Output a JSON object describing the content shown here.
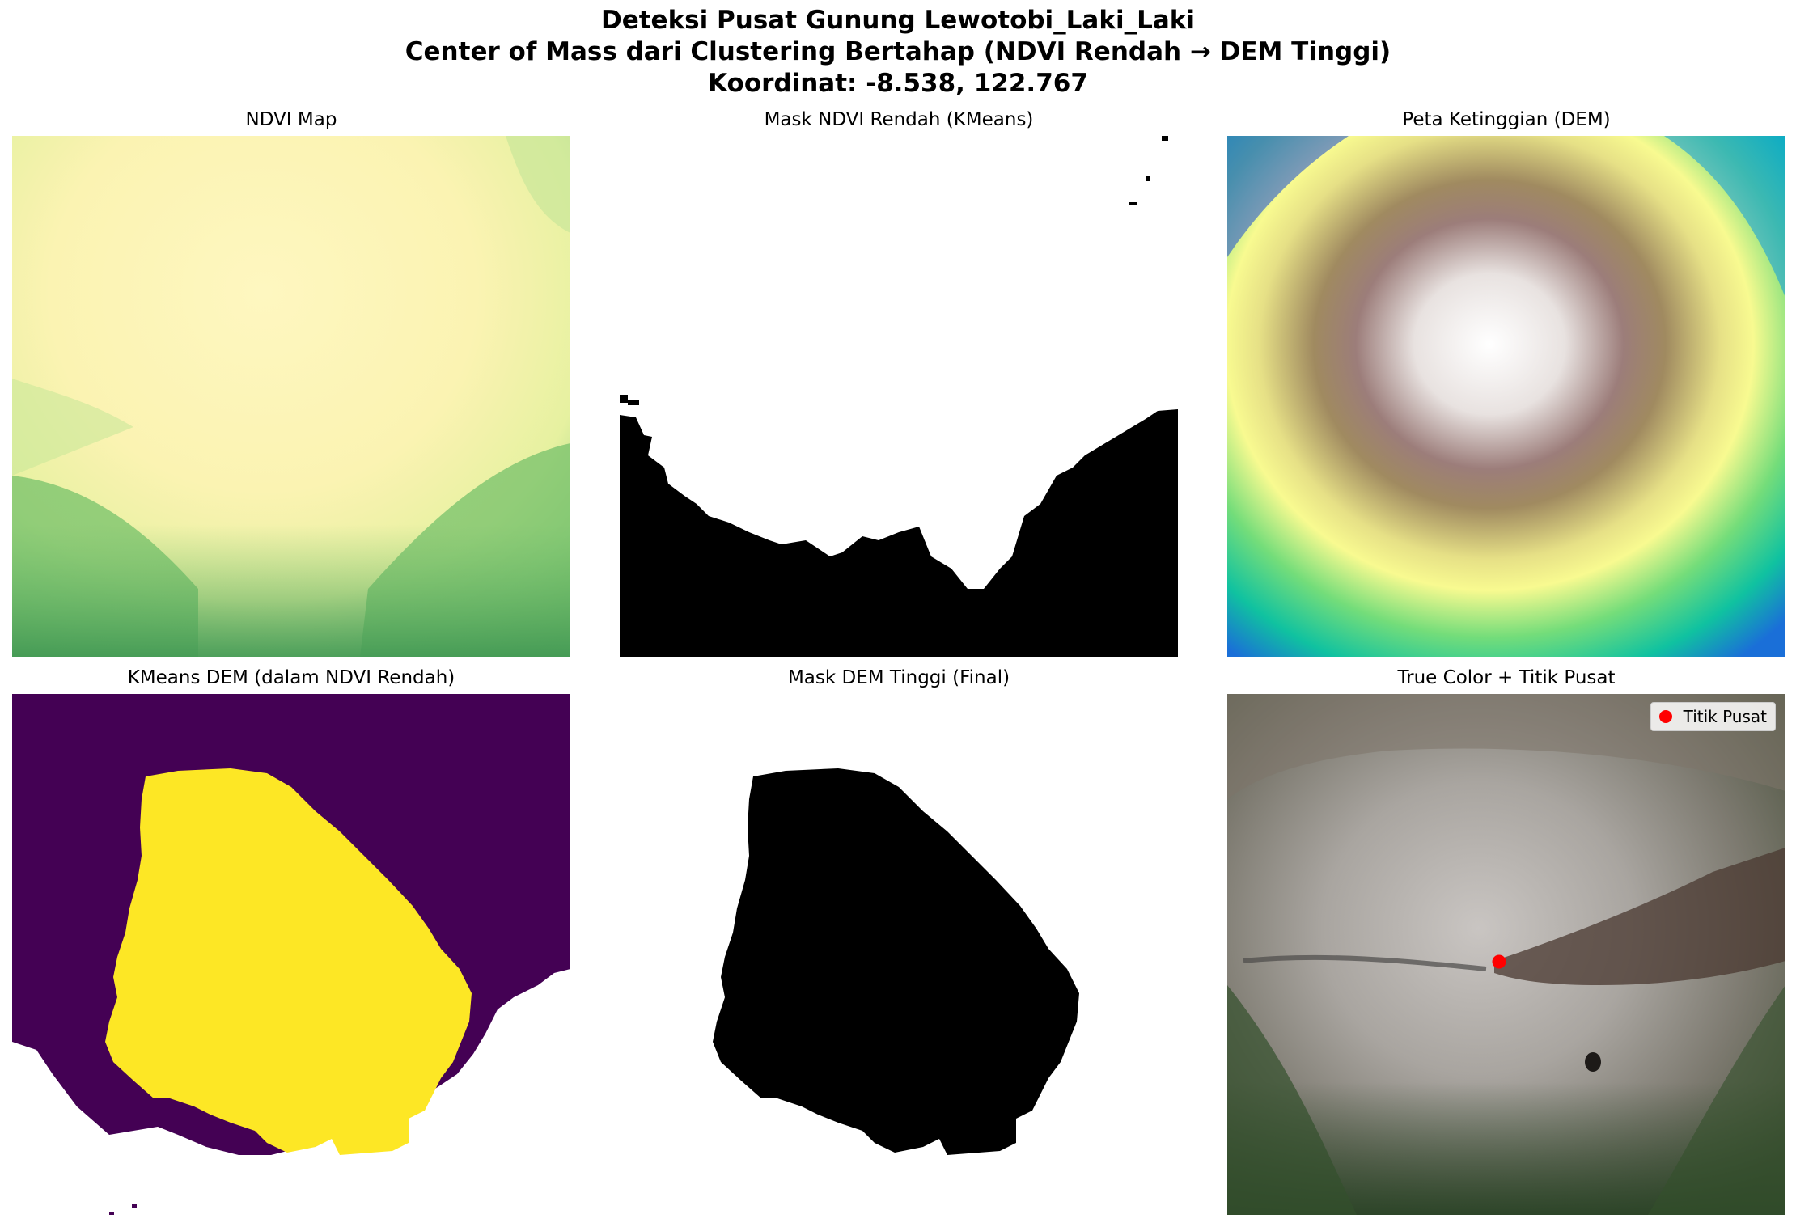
{
  "suptitle": {
    "line1": "Deteksi Pusat Gunung Lewotobi_Laki_Laki",
    "line2": "Center of Mass dari Clustering Bertahap (NDVI Rendah → DEM Tinggi)",
    "line3": "Koordinat: -8.538, 122.767"
  },
  "panels": {
    "ndvi": {
      "title": "NDVI Map"
    },
    "ndvi_mask": {
      "title": "Mask NDVI Rendah (KMeans)"
    },
    "dem": {
      "title": "Peta Ketinggian (DEM)"
    },
    "kmeans_dem": {
      "title": "KMeans DEM (dalam NDVI Rendah)"
    },
    "dem_mask": {
      "title": "Mask DEM Tinggi (Final)"
    },
    "true_color": {
      "title": "True Color + Titik Pusat",
      "legend_label": "Titik Pusat",
      "marker_color": "#ff0000"
    }
  },
  "colors": {
    "kmeans_low": "#440154",
    "kmeans_high": "#fde725",
    "mask_on": "#000000",
    "mask_off": "#ffffff"
  }
}
